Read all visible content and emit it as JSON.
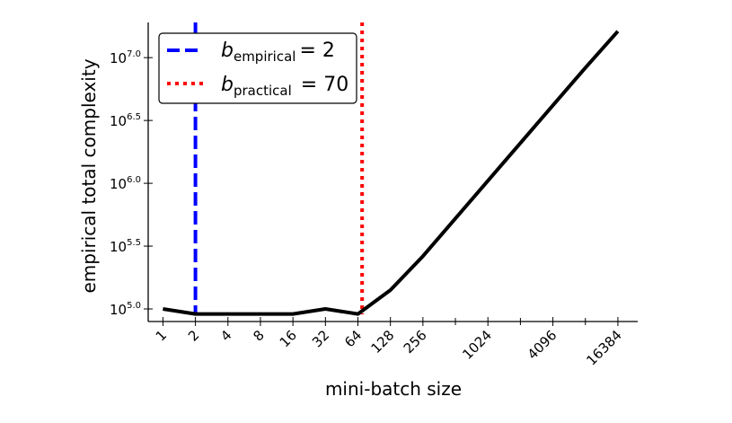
{
  "chart_data": {
    "type": "line",
    "title": "",
    "xlabel": "mini-batch size",
    "ylabel": "empirical total complexity",
    "x_scale": "log2",
    "y_scale": "log10",
    "xlim": [
      0.73,
      25000
    ],
    "ylim_exponent": [
      4.9,
      7.28
    ],
    "grid": false,
    "legend_position": "top-left",
    "x_ticks": [
      1,
      2,
      4,
      8,
      16,
      32,
      64,
      128,
      256,
      1024,
      4096,
      16384
    ],
    "x_tick_labels": [
      "1",
      "2",
      "4",
      "8",
      "16",
      "32",
      "64",
      "128",
      "256",
      "1024",
      "4096",
      "16384"
    ],
    "x_minor_ticks": [
      512,
      2048,
      8192
    ],
    "y_ticks_exponent": [
      5.0,
      5.5,
      6.0,
      6.5,
      7.0
    ],
    "y_tick_base": "10",
    "y_tick_exponent_labels": [
      "5.0",
      "5.5",
      "6.0",
      "6.5",
      "7.0"
    ],
    "series": [
      {
        "color": "#000000",
        "x": [
          1,
          2,
          4,
          8,
          16,
          32,
          64,
          128,
          256,
          512,
          1024,
          2048,
          4096,
          8192,
          16384
        ],
        "y_exponent": [
          5.0,
          4.96,
          4.96,
          4.96,
          4.96,
          5.0,
          4.96,
          5.15,
          5.42,
          5.72,
          6.02,
          6.32,
          6.62,
          6.92,
          7.21
        ]
      }
    ],
    "vlines": [
      {
        "x": 2,
        "color": "#0000ff",
        "style": "dashed",
        "legend_symbol": "b",
        "legend_subscript": "empirical",
        "legend_value": "= 2"
      },
      {
        "x": 70,
        "color": "#ff0000",
        "style": "dotted",
        "legend_symbol": "b",
        "legend_subscript": "practical",
        "legend_value": "= 70"
      }
    ]
  }
}
